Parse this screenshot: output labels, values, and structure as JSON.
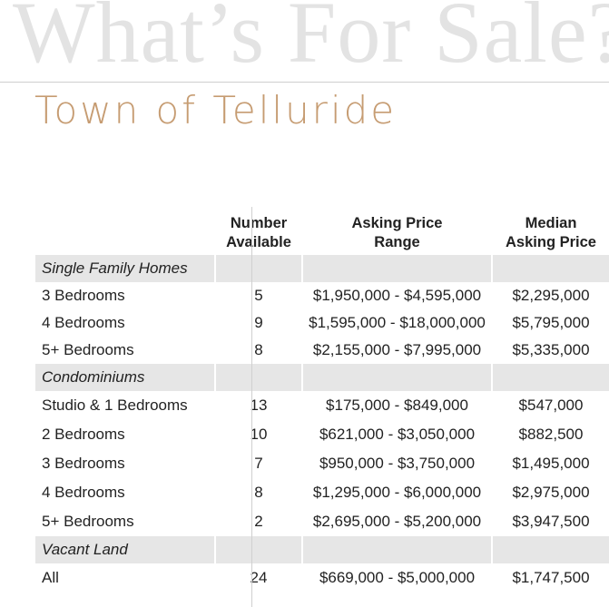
{
  "header": {
    "title": "What’s For Sale?",
    "subtitle": "Town of Telluride"
  },
  "table": {
    "columns": [
      "",
      "Number Available",
      "Asking Price Range",
      "Median Asking Price"
    ],
    "column_lines": [
      [
        "Number",
        "Available"
      ],
      [
        "Asking Price",
        "Range"
      ],
      [
        "Median",
        "Asking Price"
      ]
    ],
    "sections": [
      {
        "name": "Single Family Homes",
        "rows": [
          {
            "type": "3 Bedrooms",
            "number": "5",
            "range": "$1,950,000 - $4,595,000",
            "median": "$2,295,000"
          },
          {
            "type": "4 Bedrooms",
            "number": "9",
            "range": "$1,595,000 - $18,000,000",
            "median": "$5,795,000"
          },
          {
            "type": "5+ Bedrooms",
            "number": "8",
            "range": "$2,155,000 - $7,995,000",
            "median": "$5,335,000"
          }
        ]
      },
      {
        "name": "Condominiums",
        "rows": [
          {
            "type": "Studio & 1 Bedrooms",
            "number": "13",
            "range": "$175,000 - $849,000",
            "median": "$547,000"
          },
          {
            "type": "2 Bedrooms",
            "number": "10",
            "range": "$621,000 - $3,050,000",
            "median": "$882,500"
          },
          {
            "type": "3 Bedrooms",
            "number": "7",
            "range": "$950,000 - $3,750,000",
            "median": "$1,495,000"
          },
          {
            "type": "4 Bedrooms",
            "number": "8",
            "range": "$1,295,000 - $6,000,000",
            "median": "$2,975,000"
          },
          {
            "type": "5+ Bedrooms",
            "number": "2",
            "range": "$2,695,000 - $5,200,000",
            "median": "$3,947,500"
          }
        ]
      },
      {
        "name": "Vacant Land",
        "rows": [
          {
            "type": "All",
            "number": "24",
            "range": "$669,000 - $5,000,000",
            "median": "$1,747,500"
          }
        ]
      }
    ]
  }
}
